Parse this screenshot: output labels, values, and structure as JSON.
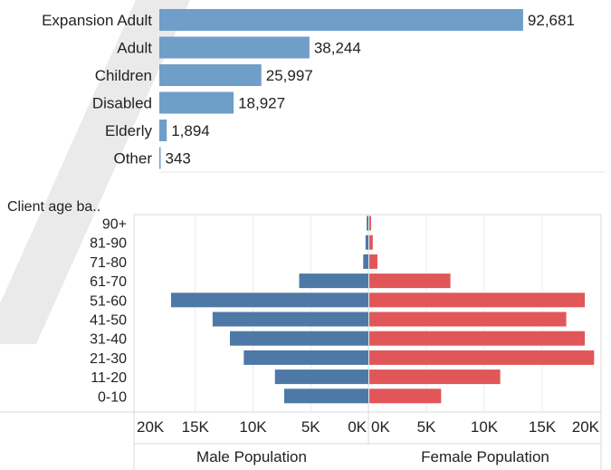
{
  "chart_data": [
    {
      "type": "bar",
      "orientation": "horizontal",
      "categories": [
        "Expansion Adult",
        "Adult",
        "Children",
        "Disabled",
        "Elderly",
        "Other"
      ],
      "values": [
        92681,
        38244,
        25997,
        18927,
        1894,
        343
      ],
      "value_labels": [
        "92,681",
        "38,244",
        "25,997",
        "18,927",
        "1,894",
        "343"
      ],
      "xlim": [
        0,
        101000
      ],
      "colors": {
        "bar": "#6f9ec9"
      }
    },
    {
      "type": "bar",
      "subtype": "population-pyramid",
      "row_header": "Client age ba..",
      "categories": [
        "90+",
        "81-90",
        "71-80",
        "61-70",
        "51-60",
        "41-50",
        "31-40",
        "21-30",
        "11-20",
        "0-10"
      ],
      "series": [
        {
          "name": "Male Population",
          "values": [
            150,
            250,
            450,
            6000,
            17100,
            13500,
            12000,
            10800,
            8100,
            7300
          ]
        },
        {
          "name": "Female Population",
          "values": [
            150,
            300,
            700,
            7000,
            18600,
            17000,
            18600,
            19400,
            11300,
            6200
          ]
        }
      ],
      "male_axis": {
        "ticks": [
          20000,
          15000,
          10000,
          5000,
          0
        ],
        "tick_labels": [
          "20K",
          "15K",
          "10K",
          "5K",
          "0K"
        ],
        "lim": [
          0,
          20000
        ]
      },
      "female_axis": {
        "ticks": [
          0,
          5000,
          10000,
          15000,
          20000
        ],
        "tick_labels": [
          "0K",
          "5K",
          "10K",
          "15K",
          "20K"
        ],
        "lim": [
          0,
          20000
        ]
      },
      "gridlines": true,
      "colors": {
        "male": "#4e79a7",
        "female": "#e15759",
        "grid": "#d9d9d9"
      }
    }
  ],
  "watermark": {
    "text": "DRAFT",
    "color": "#d0d0d0"
  }
}
